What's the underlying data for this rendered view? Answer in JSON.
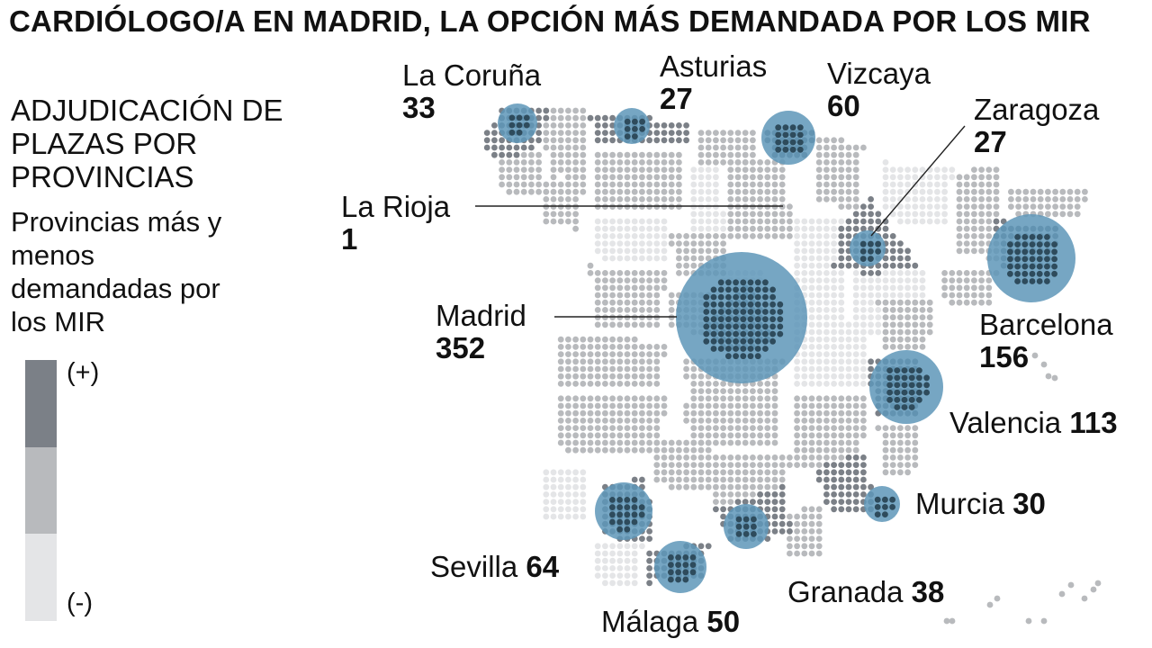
{
  "header": {
    "title": "CARDIÓLOGO/A EN MADRID, LA OPCIÓN MÁS DEMANDADA POR LOS MIR",
    "subtitle": "ADJUDICACIÓN DE PLAZAS POR PROVINCIAS"
  },
  "legend": {
    "title": "Provincias más y menos demandadas por los MIR",
    "high_label": "(+)",
    "low_label": "(-)",
    "colors": [
      "#7b8087",
      "#b8babd",
      "#e4e5e7"
    ]
  },
  "colors": {
    "bubble": "#5e97b8",
    "dot_on_bubble": "#2e4b5c",
    "leader_line": "#222222"
  },
  "provinces": [
    {
      "name": "La Coruña",
      "value": "33",
      "demand": "high"
    },
    {
      "name": "Asturias",
      "value": "27",
      "demand": "high"
    },
    {
      "name": "Vizcaya",
      "value": "60",
      "demand": "high"
    },
    {
      "name": "Zaragoza",
      "value": "27",
      "demand": "high"
    },
    {
      "name": "La Rioja",
      "value": "1",
      "demand": "high"
    },
    {
      "name": "Madrid",
      "value": "352",
      "demand": "high"
    },
    {
      "name": "Barcelona",
      "value": "156",
      "demand": "high"
    },
    {
      "name": "Valencia",
      "value": "113",
      "demand": "high"
    },
    {
      "name": "Murcia",
      "value": "30",
      "demand": "high"
    },
    {
      "name": "Sevilla",
      "value": "64",
      "demand": "high"
    },
    {
      "name": "Granada",
      "value": "38",
      "demand": "high"
    },
    {
      "name": "Málaga",
      "value": "50",
      "demand": "high"
    }
  ]
}
